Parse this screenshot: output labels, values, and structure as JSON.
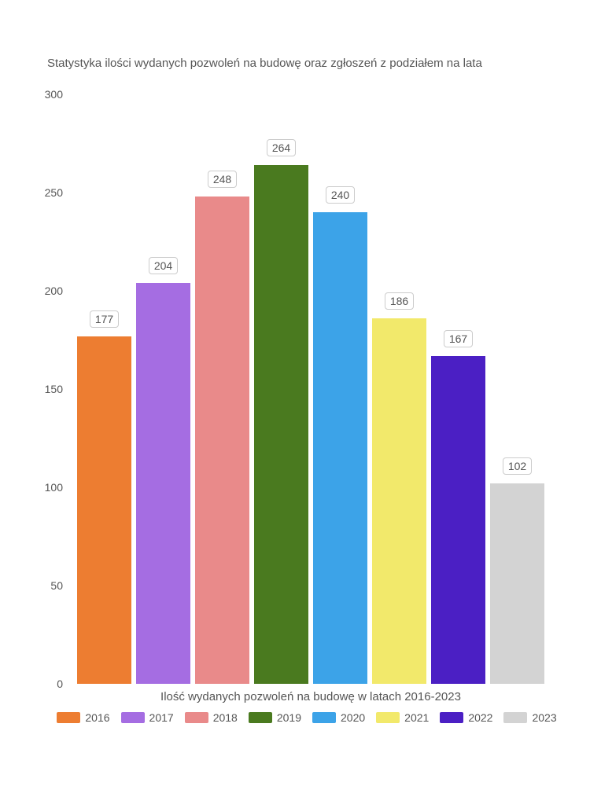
{
  "chart": {
    "type": "bar",
    "title": "Statystyka ilości wydanych pozwoleń na budowę oraz zgłoszeń z podziałem na lata",
    "title_fontsize": 15,
    "title_color": "#555555",
    "xlabel": "Ilość wydanych pozwoleń na budowę w latach 2016-2023",
    "label_fontsize": 15,
    "label_color": "#555555",
    "ylim": [
      0,
      300
    ],
    "ytick_step": 50,
    "yticks": [
      {
        "value": 0,
        "label": "0"
      },
      {
        "value": 50,
        "label": "50"
      },
      {
        "value": 100,
        "label": "100"
      },
      {
        "value": 150,
        "label": "150"
      },
      {
        "value": 200,
        "label": "200"
      },
      {
        "value": 250,
        "label": "250"
      },
      {
        "value": 300,
        "label": "300"
      }
    ],
    "tick_color": "#555555",
    "tick_fontsize": 14,
    "background_color": "#ffffff",
    "bar_width": 0.85,
    "series": [
      {
        "category": "2016",
        "value": 177,
        "color": "#ed7d31"
      },
      {
        "category": "2017",
        "value": 204,
        "color": "#a56de2"
      },
      {
        "category": "2018",
        "value": 248,
        "color": "#e98a8a"
      },
      {
        "category": "2019",
        "value": 264,
        "color": "#4a7a1f"
      },
      {
        "category": "2020",
        "value": 240,
        "color": "#3ca3e8"
      },
      {
        "category": "2021",
        "value": 186,
        "color": "#f2e96b"
      },
      {
        "category": "2022",
        "value": 167,
        "color": "#4b1fc4"
      },
      {
        "category": "2023",
        "value": 102,
        "color": "#d3d3d3"
      }
    ],
    "value_label_bg": "#ffffff",
    "value_label_border": "#cccccc",
    "value_label_color": "#555555",
    "value_label_fontsize": 14,
    "legend_fontsize": 14,
    "legend_color": "#555555"
  }
}
